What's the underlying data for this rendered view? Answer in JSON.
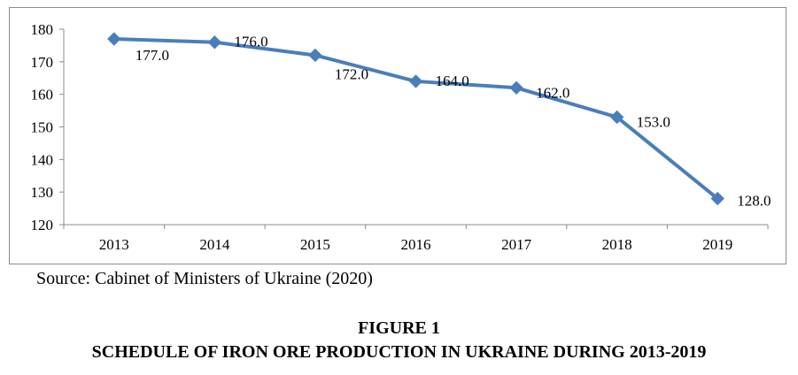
{
  "chart_data": {
    "type": "line",
    "x": [
      "2013",
      "2014",
      "2015",
      "2016",
      "2017",
      "2018",
      "2019"
    ],
    "series": [
      {
        "values": [
          177.0,
          176.0,
          172.0,
          164.0,
          162.0,
          153.0,
          128.0
        ]
      }
    ],
    "data_labels": [
      "177.0",
      "176.0",
      "172.0",
      "164.0",
      "162.0",
      "153.0",
      "128.0"
    ],
    "y_ticks": [
      "120",
      "130",
      "140",
      "150",
      "160",
      "170",
      "180"
    ],
    "ylim": [
      120,
      180
    ],
    "marker": "diamond",
    "line_color": "#4a7ebb",
    "grid": false,
    "legend": "none"
  },
  "caption": {
    "source": "Source: Cabinet of Ministers of Ukraine (2020)",
    "figure_number": "FIGURE 1",
    "figure_title": "SCHEDULE OF IRON ORE PRODUCTION IN UKRAINE DURING 2013-2019"
  }
}
